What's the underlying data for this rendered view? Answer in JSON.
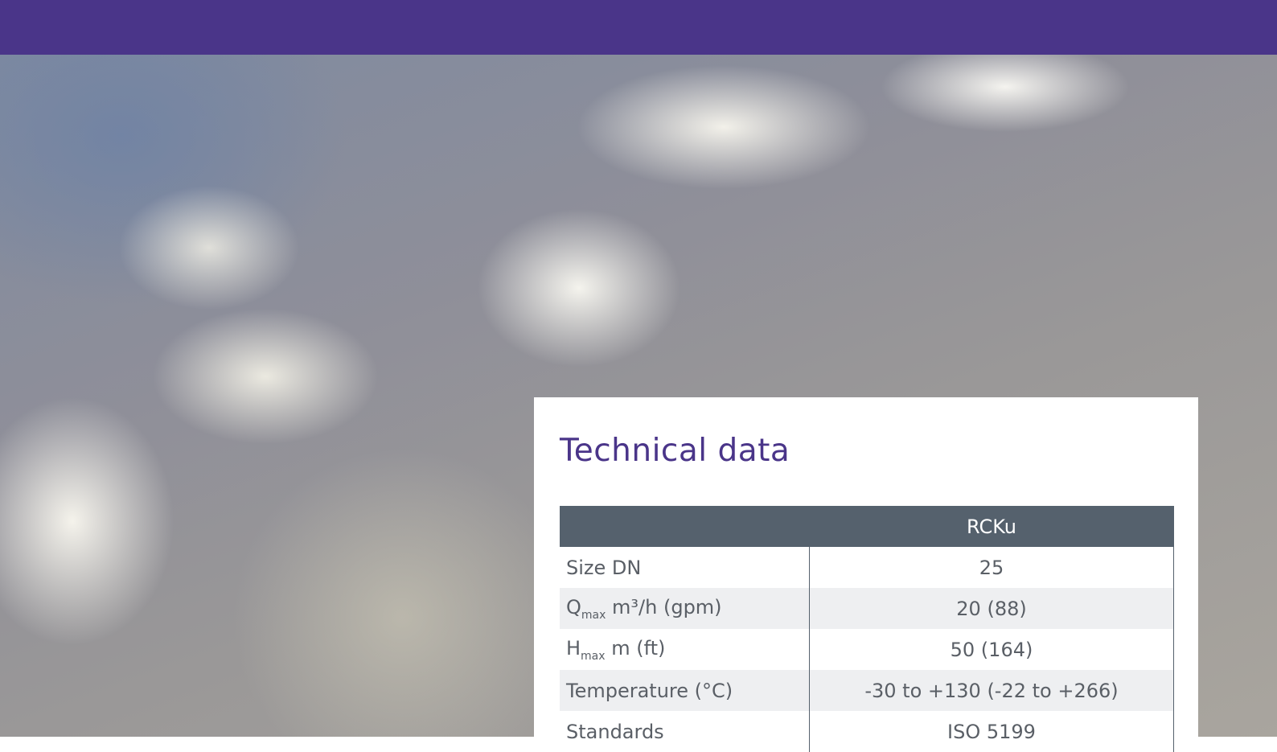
{
  "card": {
    "title": "Technical data",
    "table": {
      "header": "RCKu",
      "rows": [
        {
          "label": "Size DN",
          "value": "25"
        },
        {
          "label": {
            "main": "Q",
            "sub": "max",
            "rest": "m³/h (gpm)"
          },
          "value": "20 (88)"
        },
        {
          "label": {
            "main": "H",
            "sub": "max",
            "rest": "m (ft)"
          },
          "value": "50  (164)"
        },
        {
          "label": "Temperature (°C)",
          "value": "-30 to +130 (-22 to +266)"
        },
        {
          "label": "Standards",
          "value": "ISO 5199"
        }
      ]
    }
  }
}
